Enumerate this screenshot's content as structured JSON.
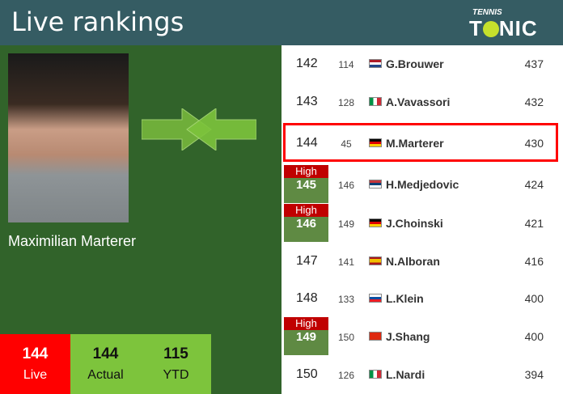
{
  "header": {
    "title": "Live rankings",
    "logo_small": "TENNIS",
    "logo_big": "TONIC"
  },
  "player": {
    "name": "Maximilian Marterer",
    "trend": "arrows-both-directions"
  },
  "stats": [
    {
      "value": "144",
      "label": "Live",
      "color": "#ff0000"
    },
    {
      "value": "144",
      "label": "Actual",
      "color": "#7dc43c"
    },
    {
      "value": "115",
      "label": "YTD",
      "color": "#7dc43c"
    }
  ],
  "high_label": "High",
  "rows": [
    {
      "rank": "142",
      "prev": "114",
      "flag": "nl",
      "name": "G.Brouwer",
      "points": "437",
      "high": false
    },
    {
      "rank": "143",
      "prev": "128",
      "flag": "it",
      "name": "A.Vavassori",
      "points": "432",
      "high": false
    },
    {
      "rank": "144",
      "prev": "45",
      "flag": "de",
      "name": "M.Marterer",
      "points": "430",
      "high": false,
      "current": true
    },
    {
      "rank": "145",
      "prev": "146",
      "flag": "rs",
      "name": "H.Medjedovic",
      "points": "424",
      "high": true
    },
    {
      "rank": "146",
      "prev": "149",
      "flag": "de",
      "name": "J.Choinski",
      "points": "421",
      "high": true
    },
    {
      "rank": "147",
      "prev": "141",
      "flag": "es",
      "name": "N.Alboran",
      "points": "416",
      "high": false
    },
    {
      "rank": "148",
      "prev": "133",
      "flag": "sk",
      "name": "L.Klein",
      "points": "400",
      "high": false
    },
    {
      "rank": "149",
      "prev": "150",
      "flag": "cn",
      "name": "J.Shang",
      "points": "400",
      "high": true
    },
    {
      "rank": "150",
      "prev": "126",
      "flag": "it",
      "name": "L.Nardi",
      "points": "394",
      "high": false
    }
  ]
}
